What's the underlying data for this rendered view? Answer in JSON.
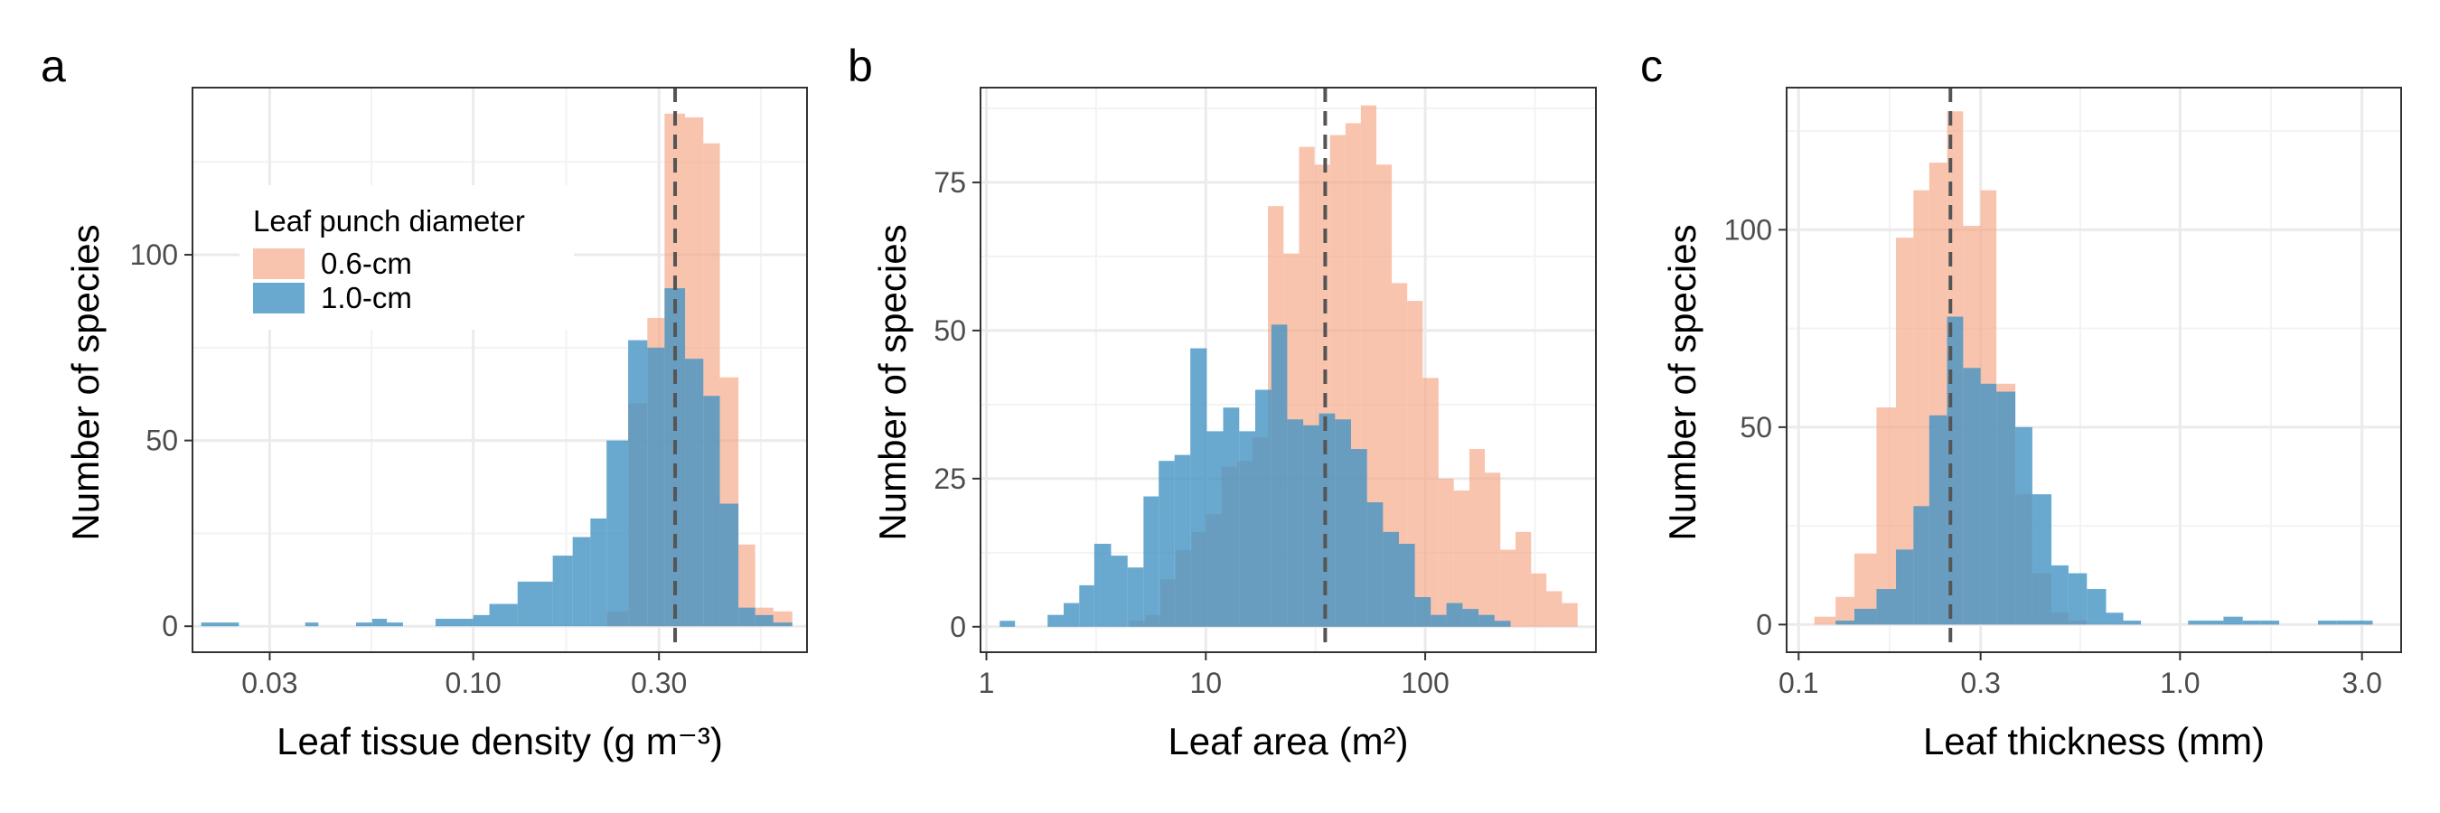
{
  "colors": {
    "series_06": "#f4a582",
    "series_10": "#4393c3",
    "grid_major": "#ebebeb",
    "grid_minor": "#f3f3f3",
    "frame": "#333333",
    "reference_line": "#555555"
  },
  "chart_data": [
    {
      "type": "histogram",
      "panel": "a",
      "xlabel": "Leaf tissue density",
      "xlabel_unit": "(g m⁻³)",
      "ylabel": "Number of species",
      "xscale": "log",
      "xlim": [
        0.019,
        0.72
      ],
      "ylim": [
        -7,
        145
      ],
      "xticks": [
        0.03,
        0.1,
        0.3
      ],
      "xtick_labels": [
        "0.03",
        "0.10",
        "0.30"
      ],
      "yticks": [
        0,
        50,
        100
      ],
      "ytick_labels": [
        "0",
        "50",
        "100"
      ],
      "reference_line": 0.33,
      "legend": {
        "title": "Leaf punch diameter",
        "placement": "top-left",
        "entries": [
          "0.6-cm",
          "1.0-cm"
        ]
      },
      "series": [
        {
          "name": "0.6-cm",
          "bins": [
            [
              0.22,
              0.25,
              4
            ],
            [
              0.25,
              0.28,
              60
            ],
            [
              0.28,
              0.31,
              83
            ],
            [
              0.31,
              0.35,
              138
            ],
            [
              0.35,
              0.39,
              137
            ],
            [
              0.39,
              0.43,
              130
            ],
            [
              0.43,
              0.48,
              67
            ],
            [
              0.48,
              0.53,
              22
            ],
            [
              0.53,
              0.59,
              5
            ],
            [
              0.59,
              0.66,
              4
            ]
          ]
        },
        {
          "name": "1.0-cm",
          "bins": [
            [
              0.02,
              0.025,
              1
            ],
            [
              0.037,
              0.04,
              1
            ],
            [
              0.05,
              0.055,
              1
            ],
            [
              0.055,
              0.06,
              2
            ],
            [
              0.06,
              0.066,
              1
            ],
            [
              0.08,
              0.09,
              2
            ],
            [
              0.09,
              0.1,
              2
            ],
            [
              0.1,
              0.11,
              3
            ],
            [
              0.11,
              0.13,
              6
            ],
            [
              0.13,
              0.16,
              12
            ],
            [
              0.16,
              0.18,
              19
            ],
            [
              0.18,
              0.2,
              24
            ],
            [
              0.2,
              0.22,
              29
            ],
            [
              0.22,
              0.25,
              50
            ],
            [
              0.25,
              0.28,
              77
            ],
            [
              0.28,
              0.31,
              75
            ],
            [
              0.31,
              0.35,
              91
            ],
            [
              0.35,
              0.39,
              72
            ],
            [
              0.39,
              0.43,
              62
            ],
            [
              0.43,
              0.48,
              33
            ],
            [
              0.48,
              0.53,
              5
            ],
            [
              0.53,
              0.59,
              3
            ],
            [
              0.59,
              0.66,
              1
            ]
          ]
        }
      ]
    },
    {
      "type": "histogram",
      "panel": "b",
      "xlabel": "Leaf area",
      "xlabel_unit": "(m²)",
      "ylabel": "Number of species",
      "xscale": "log",
      "xlim": [
        0.94,
        600
      ],
      "ylim": [
        -4.3,
        91
      ],
      "xticks": [
        1,
        10,
        100
      ],
      "xtick_labels": [
        "1",
        "10",
        "100"
      ],
      "yticks": [
        0,
        25,
        50,
        75
      ],
      "ytick_labels": [
        "0",
        "25",
        "50",
        "75"
      ],
      "reference_line": 35,
      "series": [
        {
          "name": "0.6-cm",
          "bins": [
            [
              4.5,
              5.3,
              1
            ],
            [
              5.3,
              6.2,
              2
            ],
            [
              6.2,
              7.3,
              8
            ],
            [
              7.3,
              8.6,
              13
            ],
            [
              8.6,
              10,
              16
            ],
            [
              10,
              11.8,
              19
            ],
            [
              11.8,
              13.9,
              27
            ],
            [
              13.9,
              16.3,
              28
            ],
            [
              16.3,
              19.2,
              32
            ],
            [
              19.2,
              22.6,
              71
            ],
            [
              22.6,
              26.6,
              63
            ],
            [
              26.6,
              31.3,
              81
            ],
            [
              31.3,
              36.8,
              78
            ],
            [
              36.8,
              43.3,
              83
            ],
            [
              43.3,
              50.9,
              85
            ],
            [
              50.9,
              59.9,
              88
            ],
            [
              59.9,
              70.4,
              78
            ],
            [
              70.4,
              82.8,
              58
            ],
            [
              82.8,
              97.4,
              55
            ],
            [
              97.4,
              115,
              42
            ],
            [
              115,
              135,
              25
            ],
            [
              135,
              159,
              23
            ],
            [
              159,
              187,
              30
            ],
            [
              187,
              220,
              26
            ],
            [
              220,
              258,
              13
            ],
            [
              258,
              304,
              16
            ],
            [
              304,
              357,
              9
            ],
            [
              357,
              420,
              6
            ],
            [
              420,
              495,
              4
            ]
          ]
        },
        {
          "name": "1.0-cm",
          "bins": [
            [
              1.15,
              1.35,
              1
            ],
            [
              1.35,
              1.6,
              0
            ],
            [
              1.6,
              1.9,
              0
            ],
            [
              1.9,
              2.25,
              2
            ],
            [
              2.25,
              2.65,
              4
            ],
            [
              2.65,
              3.1,
              7
            ],
            [
              3.1,
              3.7,
              14
            ],
            [
              3.7,
              4.4,
              12
            ],
            [
              4.4,
              5.2,
              10
            ],
            [
              5.2,
              6.1,
              22
            ],
            [
              6.1,
              7.2,
              28
            ],
            [
              7.2,
              8.5,
              29
            ],
            [
              8.5,
              10.1,
              47
            ],
            [
              10.1,
              12,
              33
            ],
            [
              12,
              14.2,
              37
            ],
            [
              14.2,
              16.8,
              33
            ],
            [
              16.8,
              19.9,
              40
            ],
            [
              19.9,
              23.5,
              51
            ],
            [
              23.5,
              27.8,
              35
            ],
            [
              27.8,
              32.8,
              34
            ],
            [
              32.8,
              38.8,
              36
            ],
            [
              38.8,
              45.9,
              35
            ],
            [
              45.9,
              54.3,
              30
            ],
            [
              54.3,
              64.2,
              21
            ],
            [
              64.2,
              75.9,
              16
            ],
            [
              75.9,
              89.7,
              14
            ],
            [
              89.7,
              106,
              5
            ],
            [
              106,
              125,
              2
            ],
            [
              125,
              148,
              4
            ],
            [
              148,
              175,
              3
            ],
            [
              175,
              207,
              2
            ],
            [
              207,
              245,
              1
            ]
          ]
        }
      ]
    },
    {
      "type": "histogram",
      "panel": "c",
      "xlabel": "Leaf thickness (mm)",
      "ylabel": "Number of species",
      "xscale": "log",
      "xlim": [
        0.093,
        3.8
      ],
      "ylim": [
        -7,
        136
      ],
      "xticks": [
        0.1,
        0.3,
        1.0,
        3.0
      ],
      "xtick_labels": [
        "0.1",
        "0.3",
        "1.0",
        "3.0"
      ],
      "yticks": [
        0,
        50,
        100
      ],
      "ytick_labels": [
        "0",
        "50",
        "100"
      ],
      "reference_line": 0.25,
      "series": [
        {
          "name": "0.6-cm",
          "bins": [
            [
              0.11,
              0.125,
              2
            ],
            [
              0.125,
              0.14,
              7
            ],
            [
              0.14,
              0.16,
              18
            ],
            [
              0.16,
              0.18,
              55
            ],
            [
              0.18,
              0.2,
              98
            ],
            [
              0.2,
              0.22,
              110
            ],
            [
              0.22,
              0.245,
              117
            ],
            [
              0.245,
              0.27,
              130
            ],
            [
              0.27,
              0.3,
              101
            ],
            [
              0.3,
              0.33,
              110
            ],
            [
              0.33,
              0.37,
              61
            ],
            [
              0.37,
              0.41,
              33
            ],
            [
              0.41,
              0.46,
              13
            ],
            [
              0.46,
              0.51,
              3
            ],
            [
              0.51,
              0.57,
              1
            ]
          ]
        },
        {
          "name": "1.0-cm",
          "bins": [
            [
              0.125,
              0.14,
              1
            ],
            [
              0.14,
              0.16,
              4
            ],
            [
              0.16,
              0.18,
              9
            ],
            [
              0.18,
              0.2,
              19
            ],
            [
              0.2,
              0.22,
              30
            ],
            [
              0.22,
              0.245,
              53
            ],
            [
              0.245,
              0.27,
              78
            ],
            [
              0.27,
              0.3,
              65
            ],
            [
              0.3,
              0.33,
              61
            ],
            [
              0.33,
              0.37,
              59
            ],
            [
              0.37,
              0.41,
              50
            ],
            [
              0.41,
              0.46,
              33
            ],
            [
              0.46,
              0.51,
              15
            ],
            [
              0.51,
              0.57,
              13
            ],
            [
              0.57,
              0.64,
              9
            ],
            [
              0.64,
              0.71,
              3
            ],
            [
              0.71,
              0.79,
              1
            ],
            [
              1.05,
              1.17,
              1
            ],
            [
              1.17,
              1.3,
              1
            ],
            [
              1.3,
              1.46,
              2
            ],
            [
              1.46,
              1.63,
              1
            ],
            [
              1.63,
              1.82,
              1
            ],
            [
              2.3,
              2.57,
              1
            ],
            [
              2.57,
              2.87,
              1
            ],
            [
              2.87,
              3.2,
              1
            ]
          ]
        }
      ]
    }
  ]
}
